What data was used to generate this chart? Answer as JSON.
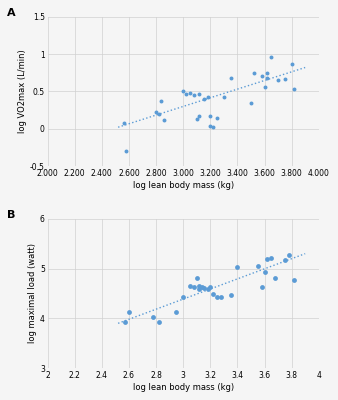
{
  "panel_A": {
    "title": "A",
    "xlabel": "log lean body mass (kg)",
    "ylabel": "log VO2max (L/min)",
    "xlim": [
      2.0,
      4.0
    ],
    "ylim": [
      -0.5,
      1.5
    ],
    "xticks": [
      2.0,
      2.2,
      2.4,
      2.6,
      2.8,
      3.0,
      3.2,
      3.4,
      3.6,
      3.8,
      4.0
    ],
    "xticklabels": [
      "2.000",
      "2.200",
      "2.400",
      "2.600",
      "2.800",
      "3.000",
      "3.200",
      "3.400",
      "3.600",
      "3.800",
      "4.000"
    ],
    "yticks": [
      -0.5,
      0.0,
      0.5,
      1.0,
      1.5
    ],
    "yticklabels": [
      "-0.5",
      "0",
      "0.5",
      "1",
      "1.5"
    ],
    "scatter_x": [
      2.56,
      2.58,
      2.8,
      2.82,
      2.84,
      2.86,
      3.0,
      3.02,
      3.05,
      3.08,
      3.1,
      3.12,
      3.12,
      3.15,
      3.18,
      3.2,
      3.2,
      3.22,
      3.25,
      3.3,
      3.35,
      3.5,
      3.52,
      3.58,
      3.6,
      3.62,
      3.62,
      3.65,
      3.7,
      3.75,
      3.8,
      3.82
    ],
    "scatter_y": [
      0.08,
      -0.3,
      0.22,
      0.2,
      0.37,
      0.12,
      0.5,
      0.46,
      0.48,
      0.45,
      0.13,
      0.17,
      0.46,
      0.4,
      0.43,
      0.17,
      0.03,
      0.02,
      0.14,
      0.42,
      0.68,
      0.35,
      0.75,
      0.7,
      0.56,
      0.75,
      0.68,
      0.96,
      0.65,
      0.66,
      0.87,
      0.53
    ],
    "trendline_x": [
      2.52,
      3.9
    ],
    "trendline_y": [
      0.02,
      0.82
    ],
    "scatter_color": "#5b9bd5",
    "trendline_color": "#5b9bd5"
  },
  "panel_B": {
    "title": "B",
    "xlabel": "log lean body mass (kg)",
    "ylabel": "log maximal load (watt)",
    "xlim": [
      2.0,
      4.0
    ],
    "ylim": [
      3.0,
      6.0
    ],
    "xticks": [
      2.0,
      2.2,
      2.4,
      2.6,
      2.8,
      3.0,
      3.2,
      3.4,
      3.6,
      3.8,
      4.0
    ],
    "xticklabels": [
      "2",
      "2.2",
      "2.4",
      "2.6",
      "2.8",
      "3",
      "3.2",
      "3.4",
      "3.6",
      "3.8",
      "4"
    ],
    "yticks": [
      3.0,
      4.0,
      5.0,
      6.0
    ],
    "yticklabels": [
      "3",
      "4",
      "5",
      "6"
    ],
    "scatter_x": [
      2.57,
      2.6,
      2.78,
      2.82,
      2.95,
      3.0,
      3.05,
      3.08,
      3.1,
      3.12,
      3.12,
      3.14,
      3.15,
      3.18,
      3.2,
      3.22,
      3.25,
      3.28,
      3.35,
      3.4,
      3.55,
      3.58,
      3.6,
      3.62,
      3.65,
      3.68,
      3.75,
      3.78,
      3.82
    ],
    "scatter_y": [
      3.92,
      4.13,
      4.02,
      3.93,
      4.13,
      4.42,
      4.65,
      4.62,
      4.82,
      4.58,
      4.65,
      4.62,
      4.6,
      4.58,
      4.62,
      4.48,
      4.42,
      4.42,
      4.47,
      5.04,
      5.05,
      4.62,
      4.93,
      5.2,
      5.22,
      4.82,
      5.18,
      5.28,
      4.78
    ],
    "trendline_x": [
      2.52,
      3.9
    ],
    "trendline_y": [
      3.9,
      5.3
    ],
    "scatter_color": "#5b9bd5",
    "trendline_color": "#5b9bd5"
  },
  "bg_color": "#f5f5f5",
  "grid_color": "#d0d0d0",
  "font_size_tick": 5.5,
  "font_size_label": 6.0,
  "font_size_title": 8.0
}
